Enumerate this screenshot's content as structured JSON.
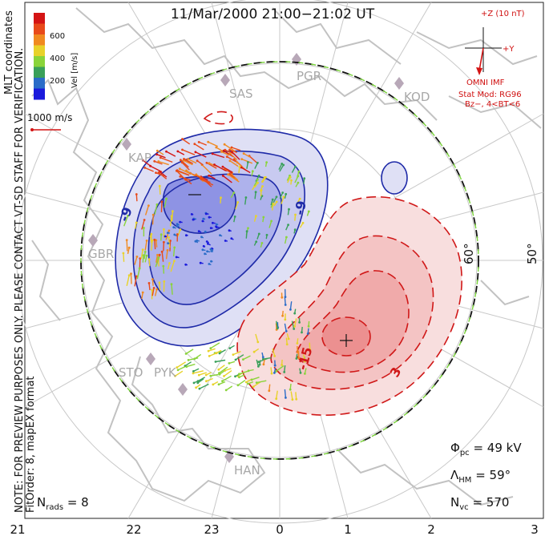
{
  "title": "11/Mar/2000 21:00−21:02 UT",
  "side_note": {
    "line1": "NOTE: FOR PREVIEW PURPOSES ONLY. PLEASE CONTACT VT-SD STAFF FOR VERIFICATION.",
    "line2": "FitOrder: 8, mapEX format",
    "coords": "MLT coordinates"
  },
  "colorbar": {
    "label": "Vel [m/s]",
    "ticks": [
      "600",
      "400",
      "200"
    ],
    "colors": [
      "#1a1adc",
      "#2a6cc8",
      "#3aa05a",
      "#8ad43a",
      "#e8d22a",
      "#f08a20",
      "#e84a1a",
      "#d41414"
    ]
  },
  "scale_vector": {
    "label": "1000 m/s"
  },
  "imf": {
    "bz_label": "+Z (10 nT)",
    "by_label": "+Y",
    "source": "OMNI IMF",
    "stat_mod": "Stat Mod: RG96",
    "condition": "Bz−, 4<BT<6"
  },
  "stations": [
    "SAS",
    "PGR",
    "KOD",
    "KAP",
    "GBR",
    "STO",
    "PYK",
    "HAN"
  ],
  "latitude_labels": [
    "60°",
    "50°"
  ],
  "contour_labels": [
    "-9",
    "-9",
    "-15",
    "3"
  ],
  "mlt_ticks": [
    "21",
    "22",
    "23",
    "0",
    "1",
    "2",
    "3"
  ],
  "stats": {
    "phi_pc_sym": "Φ",
    "phi_pc_sub": "pc",
    "phi_pc_value": "= 49 kV",
    "lambda_sym": "Λ",
    "lambda_sub": "HM",
    "lambda_value": "= 59°",
    "nvc_sym": "N",
    "nvc_sub": "vc",
    "nvc_value": "= 570",
    "nrads_sym": "N",
    "nrads_sub": "rads",
    "nrads_value": "= 8"
  },
  "accent_colors": {
    "negative_cell": "#1e2aa8",
    "positive_cell": "#d01818",
    "boundary": "#7ad43a"
  }
}
